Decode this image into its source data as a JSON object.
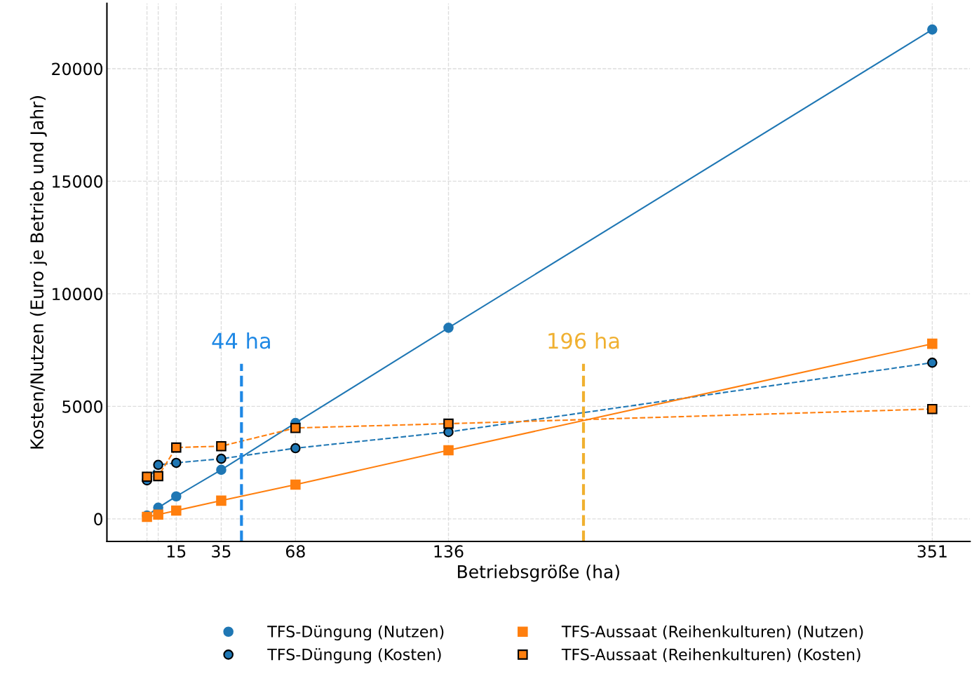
{
  "chart_data": {
    "type": "line",
    "xlabel": "Betriebsgröße (ha)",
    "ylabel": "Kosten/Nutzen (Euro je Betrieb und Jahr)",
    "x": [
      2,
      7,
      15,
      35,
      68,
      136,
      351
    ],
    "series": [
      {
        "name": "TFS-Düngung (Nutzen)",
        "color": "#1f77b4",
        "marker": "circle",
        "line_style": "solid",
        "values": [
          150,
          500,
          1000,
          2180,
          4260,
          8490,
          21740
        ]
      },
      {
        "name": "TFS-Düngung (Kosten)",
        "color": "#1f77b4",
        "marker": "circle",
        "line_style": "dashed",
        "values": [
          1710,
          2400,
          2490,
          2670,
          3140,
          3860,
          6940
        ]
      },
      {
        "name": "TFS-Aussaat (Reihenkulturen) (Nutzen)",
        "color": "#ff7f0e",
        "marker": "square",
        "line_style": "solid",
        "values": [
          90,
          190,
          370,
          810,
          1520,
          3050,
          7780
        ]
      },
      {
        "name": "TFS-Aussaat (Reihenkulturen) (Kosten)",
        "color": "#ff7f0e",
        "marker": "square",
        "line_style": "dashed",
        "values": [
          1870,
          1900,
          3170,
          3230,
          4040,
          4230,
          4880
        ]
      }
    ],
    "ref_lines": [
      {
        "axis": "x",
        "value": 44,
        "label": "44 ha",
        "color": "#1e88e5",
        "line_style": "dashed"
      },
      {
        "axis": "x",
        "value": 196,
        "label": "196 ha",
        "color": "#f0b030",
        "line_style": "dashed"
      }
    ],
    "xlim": [
      -15.8,
      367.8
    ],
    "ylim": [
      -1000,
      22900
    ],
    "xticks": [
      {
        "value": 2,
        "label": null
      },
      {
        "value": 7,
        "label": null
      },
      15,
      35,
      68,
      136,
      351
    ],
    "yticks": [
      0,
      5000,
      10000,
      15000,
      20000
    ],
    "grid": true,
    "legend": "bottom"
  }
}
